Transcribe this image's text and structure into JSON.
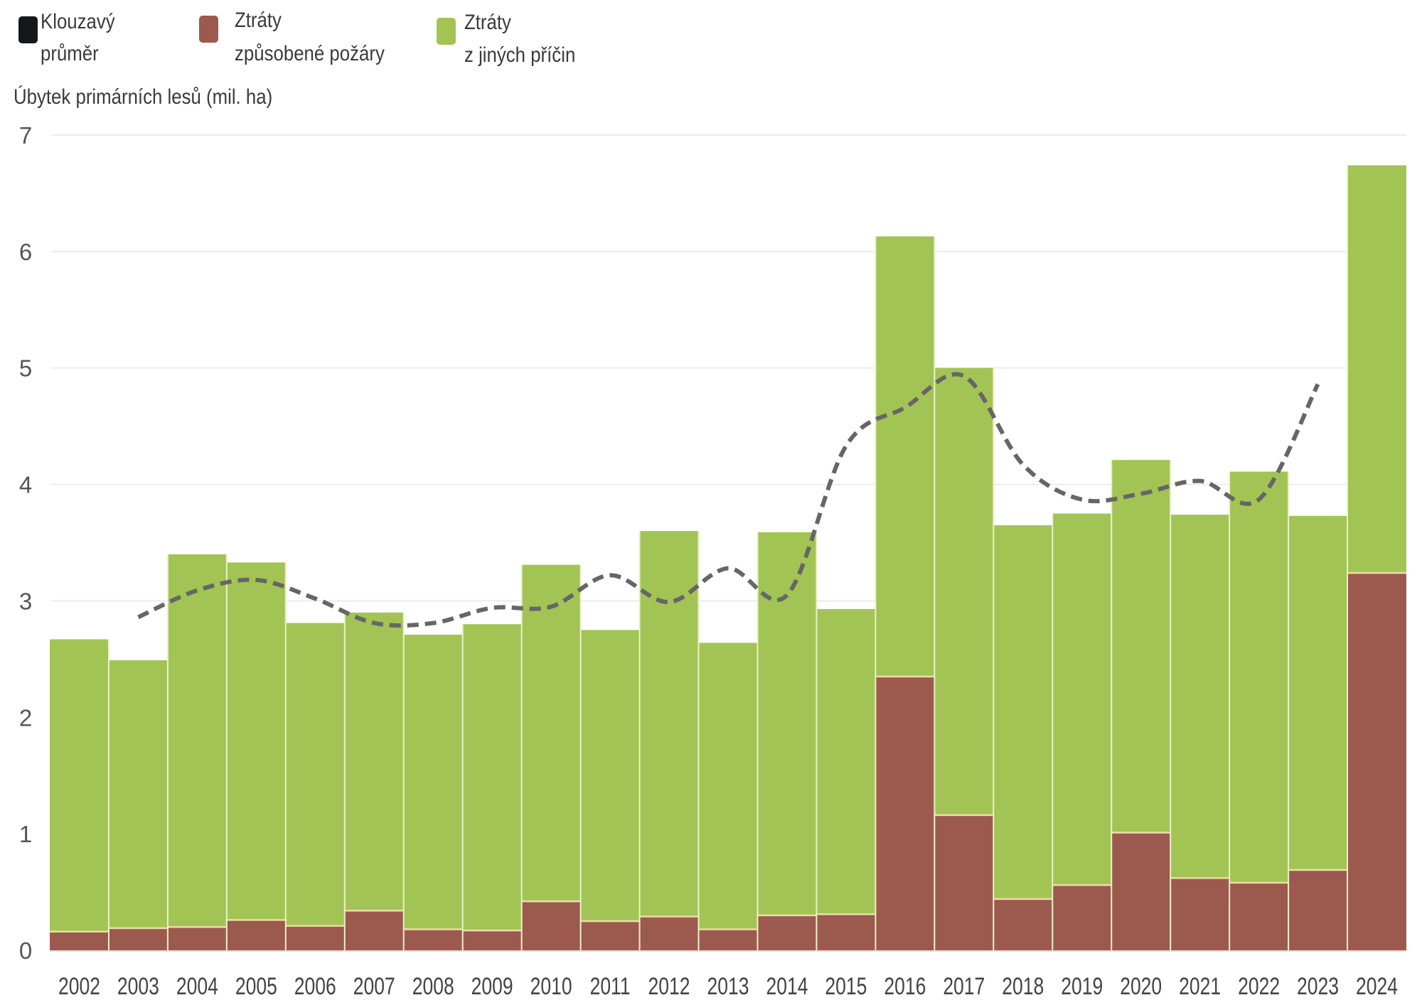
{
  "legend": {
    "items": [
      {
        "key": "moving_average",
        "line1": "Klouzavý",
        "line2": "průměr",
        "color": "#15181a"
      },
      {
        "key": "fire",
        "line1": "Ztráty",
        "line2": "způsobené požáry",
        "color": "#9c5a4f"
      },
      {
        "key": "other",
        "line1": "Ztráty",
        "line2": "z jiných příčin",
        "color": "#a2c455"
      }
    ]
  },
  "chart_data": {
    "type": "bar",
    "stacked": true,
    "title": "",
    "ylabel": "Úbytek primárních lesů (mil. ha)",
    "xlabel": "",
    "ylim": [
      0,
      7
    ],
    "yticks": [
      0,
      1,
      2,
      3,
      4,
      5,
      6,
      7
    ],
    "grid": true,
    "legend_position": "top-left",
    "categories": [
      "2002",
      "2003",
      "2004",
      "2005",
      "2006",
      "2007",
      "2008",
      "2009",
      "2010",
      "2011",
      "2012",
      "2013",
      "2014",
      "2015",
      "2016",
      "2017",
      "2018",
      "2019",
      "2020",
      "2021",
      "2022",
      "2023",
      "2024"
    ],
    "series": [
      {
        "name": "Ztráty způsobené požáry",
        "color": "#9c5a4f",
        "values": [
          0.16,
          0.19,
          0.2,
          0.26,
          0.21,
          0.34,
          0.18,
          0.17,
          0.42,
          0.25,
          0.29,
          0.18,
          0.3,
          0.31,
          2.35,
          1.16,
          0.44,
          0.56,
          1.01,
          0.62,
          0.58,
          0.69,
          3.24
        ]
      },
      {
        "name": "Ztráty z jiných příčin",
        "color": "#a2c455",
        "values": [
          2.51,
          2.3,
          3.2,
          3.07,
          2.6,
          2.56,
          2.53,
          2.63,
          2.89,
          2.5,
          3.31,
          2.46,
          3.29,
          2.62,
          3.78,
          3.84,
          3.21,
          3.19,
          3.2,
          3.12,
          3.53,
          3.04,
          3.5
        ]
      }
    ],
    "totals": [
      2.67,
      2.49,
      3.4,
      3.33,
      2.81,
      2.9,
      2.71,
      2.8,
      3.31,
      2.75,
      3.6,
      2.64,
      3.59,
      2.93,
      6.13,
      5.0,
      3.65,
      3.75,
      4.21,
      3.74,
      4.11,
      3.73,
      6.74
    ],
    "line_series": {
      "name": "Klouzavý průměr",
      "style": "dashed",
      "color": "#666666",
      "x": [
        "2003",
        "2004",
        "2005",
        "2006",
        "2007",
        "2008",
        "2009",
        "2010",
        "2011",
        "2012",
        "2013",
        "2014",
        "2015",
        "2016",
        "2017",
        "2018",
        "2019",
        "2020",
        "2021",
        "2022",
        "2023"
      ],
      "values": [
        2.86,
        3.09,
        3.18,
        3.02,
        2.81,
        2.81,
        2.94,
        2.95,
        3.22,
        2.99,
        3.28,
        3.05,
        4.33,
        4.66,
        4.93,
        4.17,
        3.87,
        3.92,
        4.03,
        3.87,
        4.86
      ]
    }
  }
}
